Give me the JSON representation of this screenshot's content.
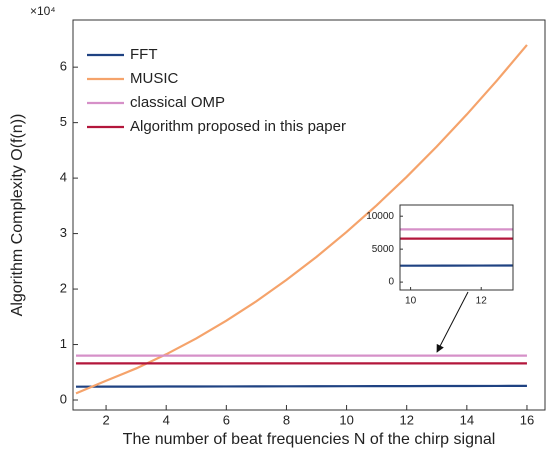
{
  "chart_data": {
    "type": "line",
    "x_label": "The number of beat frequencies N of the chirp signal",
    "y_label": "Algorithm Complexity O(f(n))",
    "y_exponent_label": "×10⁴",
    "x": [
      1,
      2,
      3,
      4,
      5,
      6,
      7,
      8,
      9,
      10,
      11,
      12,
      13,
      14,
      15,
      16
    ],
    "series": [
      {
        "name": "FFT",
        "color": "#1f4282",
        "values": [
          2400,
          2410,
          2420,
          2430,
          2440,
          2450,
          2460,
          2470,
          2480,
          2490,
          2500,
          2510,
          2520,
          2530,
          2540,
          2550
        ]
      },
      {
        "name": "MUSIC",
        "color": "#f5a36b",
        "values": [
          1200,
          3470,
          5690,
          8240,
          11100,
          14300,
          17800,
          21650,
          25800,
          30300,
          35100,
          40240,
          45700,
          51480,
          57580,
          64000
        ]
      },
      {
        "name": "classical OMP",
        "color": "#d690c8",
        "values": [
          8000,
          8000,
          8000,
          8000,
          8000,
          8000,
          8000,
          8000,
          8000,
          8000,
          8000,
          8000,
          8000,
          8000,
          8000,
          8000
        ]
      },
      {
        "name": "Algorithm proposed in this paper",
        "color": "#b3163b",
        "values": [
          6600,
          6600,
          6600,
          6600,
          6600,
          6600,
          6600,
          6600,
          6600,
          6600,
          6600,
          6600,
          6600,
          6600,
          6600,
          6600
        ]
      }
    ],
    "xlim": [
      0.9,
      16.6
    ],
    "ylim": [
      -1800,
      68500
    ],
    "xticks": [
      2,
      4,
      6,
      8,
      10,
      12,
      14,
      16
    ],
    "yticks": [
      0,
      {
        "value": 10000,
        "label": "1"
      },
      {
        "value": 20000,
        "label": "2"
      },
      {
        "value": 30000,
        "label": "3"
      },
      {
        "value": 40000,
        "label": "4"
      },
      {
        "value": 50000,
        "label": "5"
      },
      {
        "value": 60000,
        "label": "6"
      }
    ],
    "legend": "upper left",
    "inset": {
      "xlim": [
        9.7,
        12.9
      ],
      "ylim": [
        -1200,
        11700
      ],
      "xticks": [
        10,
        12
      ],
      "yticks": [
        0,
        5000,
        10000
      ]
    }
  }
}
